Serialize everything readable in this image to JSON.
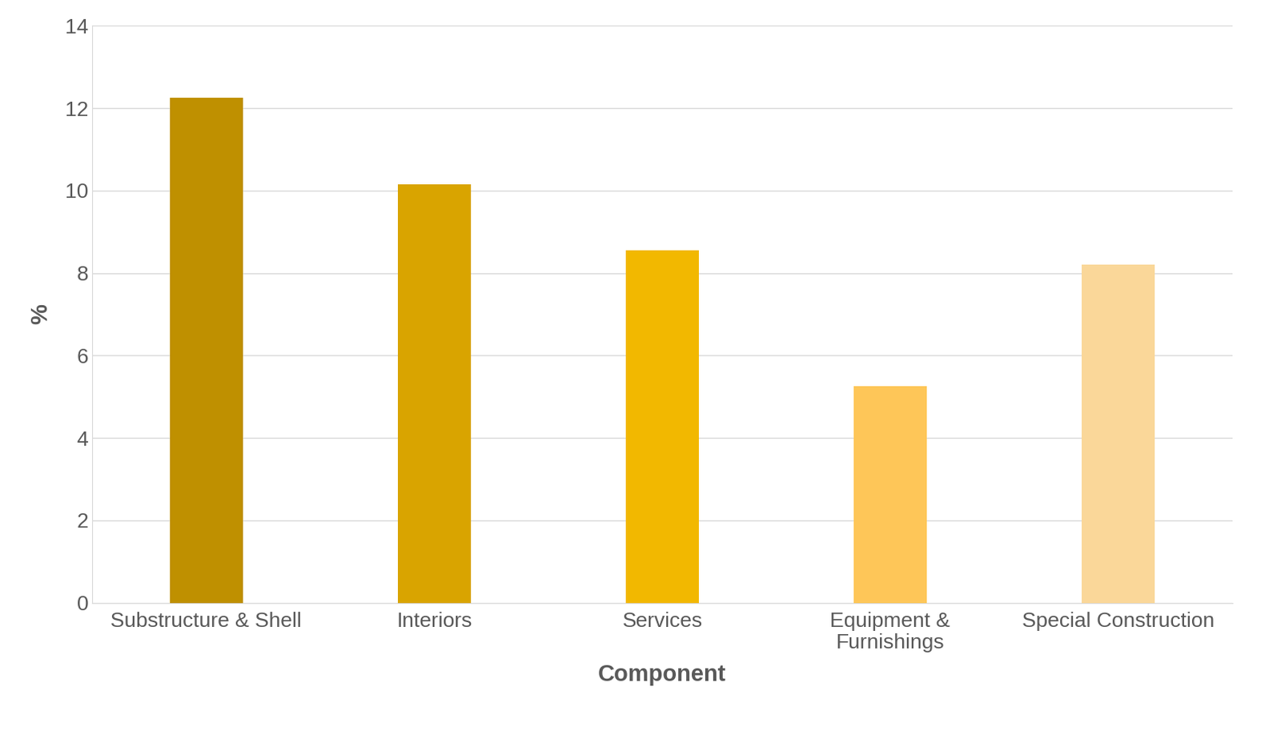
{
  "chart_data": {
    "type": "bar",
    "categories": [
      "Substructure & Shell",
      "Interiors",
      "Services",
      "Equipment & Furnishings",
      "Special Construction"
    ],
    "values": [
      12.25,
      10.15,
      8.55,
      5.25,
      8.2
    ],
    "colors": [
      "#bf9000",
      "#d9a400",
      "#f2b800",
      "#fec658",
      "#fad799"
    ],
    "x_label": "Component",
    "y_label": "%",
    "ylim": [
      0,
      14
    ],
    "yticks": [
      0,
      2,
      4,
      6,
      8,
      10,
      12,
      14
    ],
    "grid": true
  }
}
